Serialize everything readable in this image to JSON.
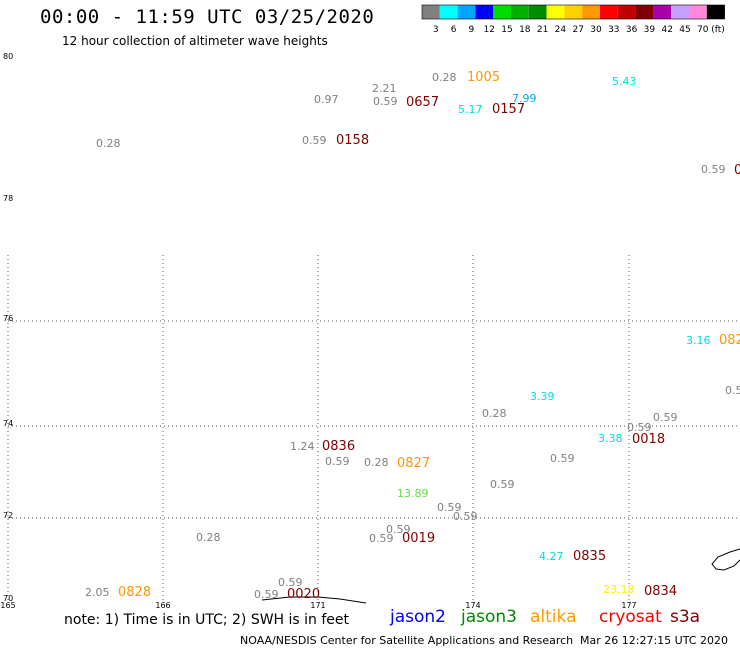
{
  "header": {
    "title": "00:00 - 11:59 UTC 03/25/2020",
    "subtitle": "12 hour collection of altimeter wave heights"
  },
  "colorbar": {
    "unit": "(ft)",
    "swatches": [
      {
        "label": "3",
        "color": "#808080"
      },
      {
        "label": "6",
        "color": "#00ffff"
      },
      {
        "label": "9",
        "color": "#00a6ff"
      },
      {
        "label": "12",
        "color": "#0000ff"
      },
      {
        "label": "15",
        "color": "#00dd00"
      },
      {
        "label": "18",
        "color": "#00b000"
      },
      {
        "label": "21",
        "color": "#008a00"
      },
      {
        "label": "24",
        "color": "#ffff00"
      },
      {
        "label": "27",
        "color": "#ffd000"
      },
      {
        "label": "30",
        "color": "#ff9900"
      },
      {
        "label": "33",
        "color": "#ff0000"
      },
      {
        "label": "36",
        "color": "#c00000"
      },
      {
        "label": "39",
        "color": "#800000"
      },
      {
        "label": "42",
        "color": "#aa00aa"
      },
      {
        "label": "45",
        "color": "#c8a0ff"
      },
      {
        "label": "70",
        "color": "#ff88dd"
      },
      {
        "label": "",
        "color": "#000000"
      }
    ]
  },
  "map": {
    "lat_labels": [
      "80",
      "78",
      "76",
      "74",
      "72",
      "70"
    ],
    "lon_labels": [
      "165",
      "166",
      "171",
      "174",
      "177"
    ],
    "wave_heights": [
      {
        "text": "0.28",
        "color": "#808080"
      },
      {
        "text": "1005",
        "color": "#ff9900"
      },
      {
        "text": "5.43",
        "color": "#00dddd"
      },
      {
        "text": "2.21",
        "color": "#808080"
      },
      {
        "text": "0.97",
        "color": "#808080"
      },
      {
        "text": "0.59",
        "color": "#808080"
      },
      {
        "text": "0657",
        "color": "#800000"
      },
      {
        "text": "7.99",
        "color": "#00a6ff"
      },
      {
        "text": "5.17",
        "color": "#00dddd"
      },
      {
        "text": "0157",
        "color": "#800000"
      },
      {
        "text": "0.28",
        "color": "#808080"
      },
      {
        "text": "0.59",
        "color": "#808080"
      },
      {
        "text": "0158",
        "color": "#800000"
      },
      {
        "text": "0.59",
        "color": "#808080"
      },
      {
        "text": "0",
        "color": "#800000"
      },
      {
        "text": "3.16",
        "color": "#00dddd"
      },
      {
        "text": "082",
        "color": "#ff9900"
      },
      {
        "text": "0.5",
        "color": "#808080"
      },
      {
        "text": "3.39",
        "color": "#00dddd"
      },
      {
        "text": "0.28",
        "color": "#808080"
      },
      {
        "text": "0.59",
        "color": "#808080"
      },
      {
        "text": "0.59",
        "color": "#808080"
      },
      {
        "text": "3.38",
        "color": "#00dddd"
      },
      {
        "text": "0018",
        "color": "#800000"
      },
      {
        "text": "1.24",
        "color": "#808080"
      },
      {
        "text": "0836",
        "color": "#800000"
      },
      {
        "text": "0.59",
        "color": "#808080"
      },
      {
        "text": "0.28",
        "color": "#808080"
      },
      {
        "text": "0827",
        "color": "#ff9900"
      },
      {
        "text": "0.59",
        "color": "#808080"
      },
      {
        "text": "0.59",
        "color": "#808080"
      },
      {
        "text": "13.89",
        "color": "#66dd44"
      },
      {
        "text": "0.59",
        "color": "#808080"
      },
      {
        "text": "0.59",
        "color": "#808080"
      },
      {
        "text": "0.59",
        "color": "#808080"
      },
      {
        "text": "0.28",
        "color": "#808080"
      },
      {
        "text": "0.59",
        "color": "#808080"
      },
      {
        "text": "0019",
        "color": "#800000"
      },
      {
        "text": "4.27",
        "color": "#00dddd"
      },
      {
        "text": "0835",
        "color": "#800000"
      },
      {
        "text": "2.05",
        "color": "#808080"
      },
      {
        "text": "0828",
        "color": "#ff9900"
      },
      {
        "text": "0.59",
        "color": "#808080"
      },
      {
        "text": "0.59",
        "color": "#808080"
      },
      {
        "text": "0020",
        "color": "#800000"
      },
      {
        "text": "23.18",
        "color": "#ffee00"
      },
      {
        "text": "0834",
        "color": "#800000"
      }
    ]
  },
  "footer": {
    "note": "note: 1) Time is in UTC; 2) SWH is in feet",
    "legend": [
      {
        "name": "jason2",
        "color": "#0000ff"
      },
      {
        "name": "jason3",
        "color": "#008a00"
      },
      {
        "name": "altika",
        "color": "#ff9900"
      },
      {
        "name": "cryosat",
        "color": "#ff0000"
      },
      {
        "name": "s3a",
        "color": "#800000"
      }
    ],
    "credit": "NOAA/NESDIS Center for Satellite Applications and Research",
    "timestamp": "Mar 26 12:27:15 UTC 2020"
  }
}
